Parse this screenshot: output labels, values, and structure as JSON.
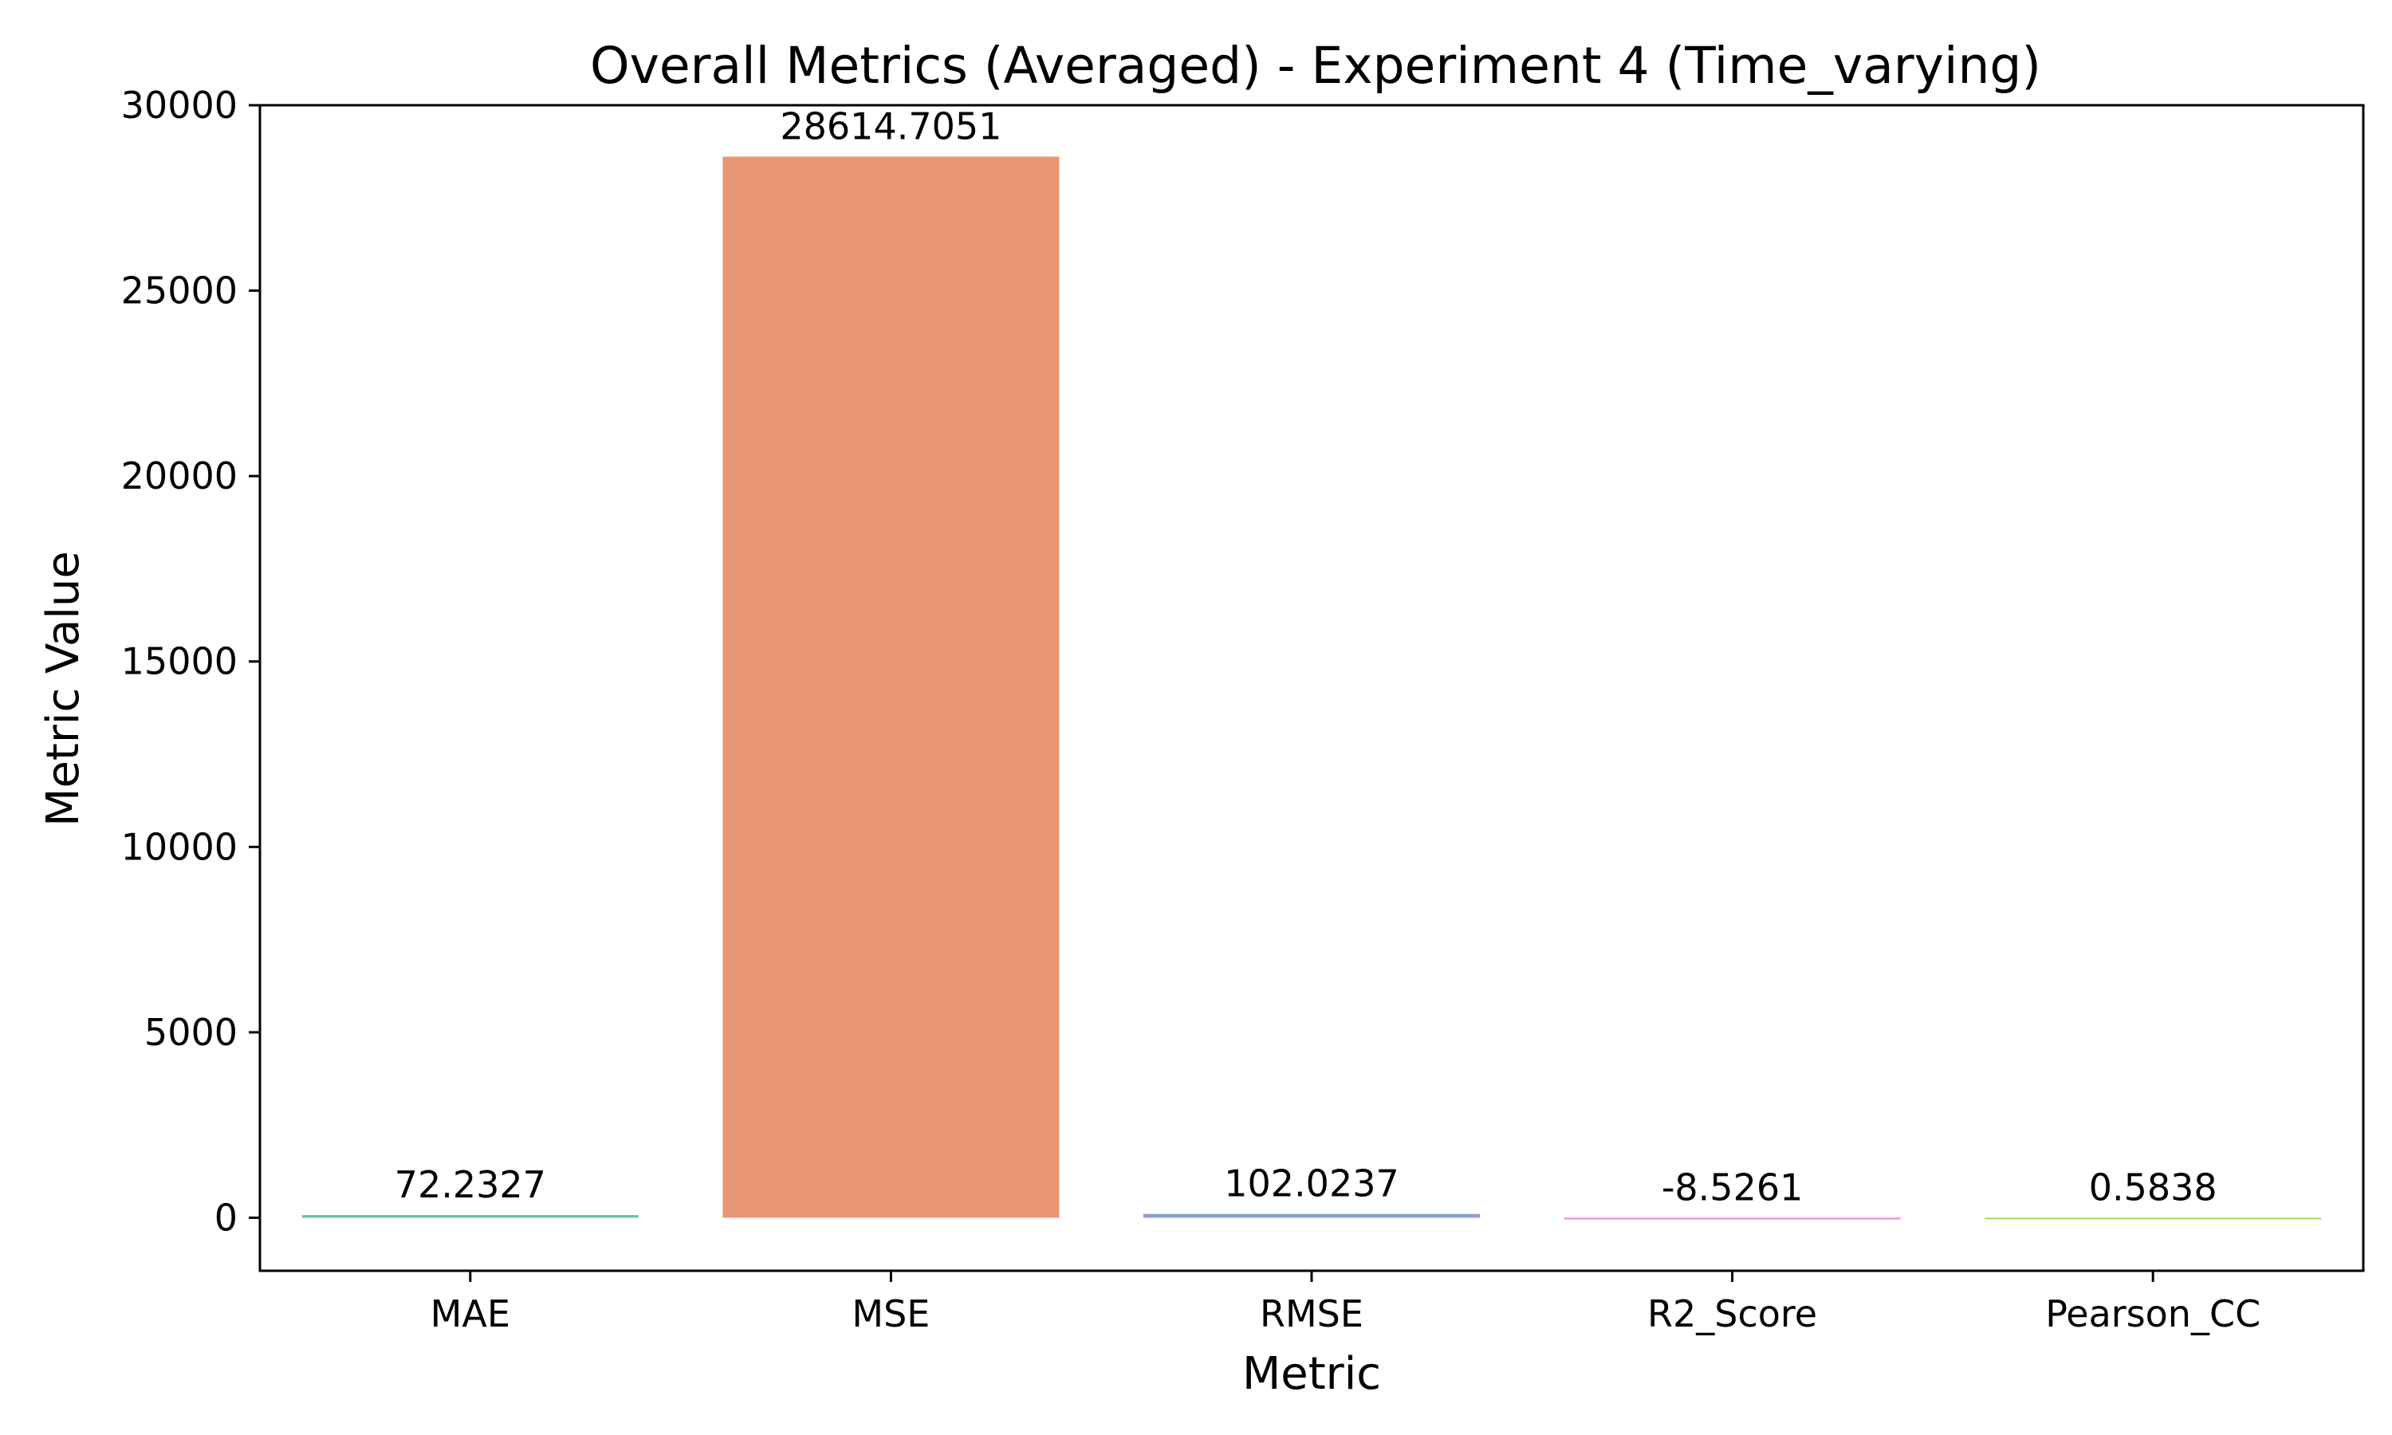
{
  "chart_data": {
    "type": "bar",
    "title": "Overall Metrics (Averaged) - Experiment 4 (Time_varying)",
    "xlabel": "Metric",
    "ylabel": "Metric Value",
    "categories": [
      "MAE",
      "MSE",
      "RMSE",
      "R2_Score",
      "Pearson_CC"
    ],
    "values": [
      72.2327,
      28614.7051,
      102.0237,
      -8.5261,
      0.5838
    ],
    "value_labels": [
      "72.2327",
      "28614.7051",
      "102.0237",
      "-8.5261",
      "0.5838"
    ],
    "colors": [
      "#66c2a5",
      "#e99675",
      "#8da0cb",
      "#e78ac3",
      "#a6d854"
    ],
    "ylim": [
      -1430,
      30000
    ],
    "yticks": [
      0,
      5000,
      10000,
      15000,
      20000,
      25000,
      30000
    ],
    "ytick_labels": [
      "0",
      "5000",
      "10000",
      "15000",
      "20000",
      "25000",
      "30000"
    ],
    "grid": false,
    "legend": "none"
  }
}
